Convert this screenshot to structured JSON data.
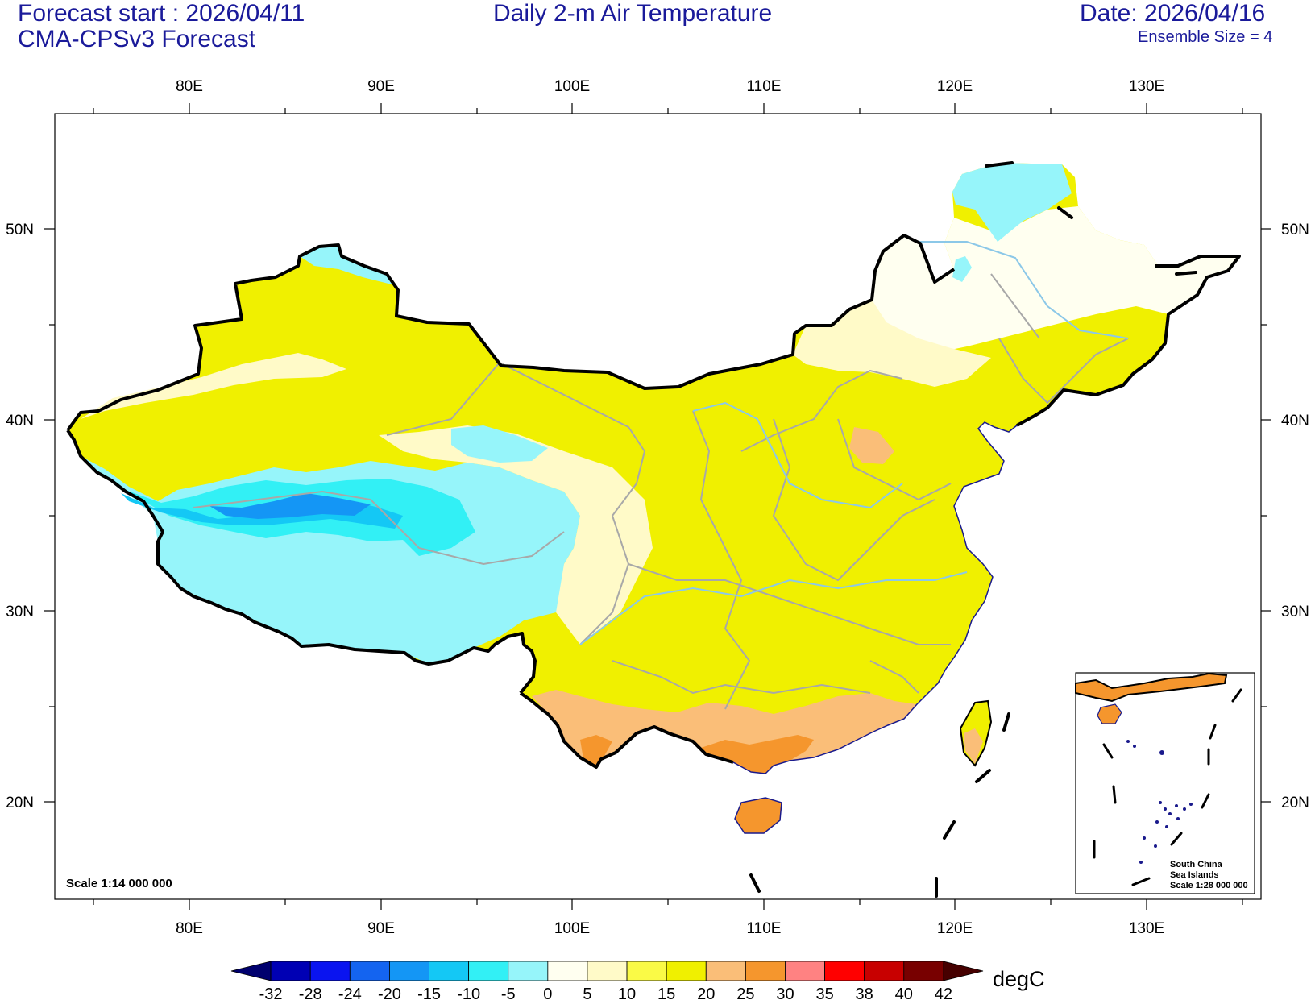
{
  "header": {
    "forecast_start": "Forecast start : 2026/04/11",
    "model": "CMA-CPSv3 Forecast",
    "title": "Daily 2-m Air Temperature",
    "date": "Date: 2026/04/16",
    "ensemble": "Ensemble Size = 4"
  },
  "axes": {
    "lon_labels": [
      "80E",
      "90E",
      "100E",
      "110E",
      "120E",
      "130E"
    ],
    "lat_labels": [
      "50N",
      "40N",
      "30N",
      "20N"
    ]
  },
  "map": {
    "scale_text": "Scale 1:14 000 000",
    "inset_lines": [
      "South China",
      "Sea Islands",
      "Scale 1:28 000 000"
    ]
  },
  "colorbar": {
    "unit": "degC",
    "ticks": [
      "-32",
      "-28",
      "-24",
      "-20",
      "-15",
      "-10",
      "-5",
      "0",
      "5",
      "10",
      "15",
      "20",
      "25",
      "30",
      "35",
      "38",
      "40",
      "42"
    ],
    "colors": [
      "#00006e",
      "#0000b4",
      "#0a14f0",
      "#1464f0",
      "#1496f5",
      "#14c8f5",
      "#32f0f5",
      "#96f5fa",
      "#fffff0",
      "#fffac8",
      "#fafa46",
      "#f0f000",
      "#fabe78",
      "#f5962d",
      "#ff8282",
      "#ff0000",
      "#c80000",
      "#780000",
      "#460000"
    ]
  }
}
